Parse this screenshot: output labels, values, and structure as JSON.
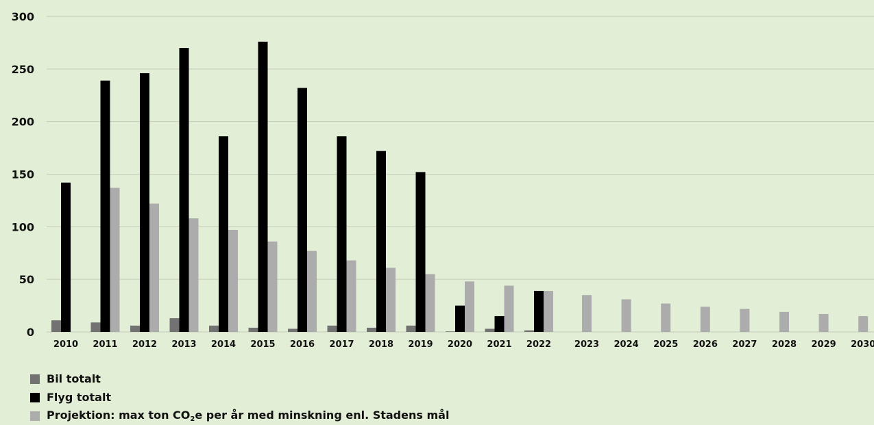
{
  "chart_data": {
    "type": "bar",
    "categories": [
      "2010",
      "2011",
      "2012",
      "2013",
      "2014",
      "2015",
      "2016",
      "2017",
      "2018",
      "2019",
      "2020",
      "2021",
      "2022",
      "2023",
      "2024",
      "2025",
      "2026",
      "2027",
      "2028",
      "2029",
      "2030"
    ],
    "series": [
      {
        "name": "Bil totalt",
        "color": "#727272",
        "values": [
          11,
          9,
          6,
          13,
          6,
          4,
          3,
          6,
          4,
          6,
          0.5,
          3,
          1.5,
          null,
          null,
          null,
          null,
          null,
          null,
          null,
          null
        ]
      },
      {
        "name": "Flyg totalt",
        "color": "#000000",
        "values": [
          142,
          239,
          246,
          270,
          186,
          276,
          232,
          186,
          172,
          152,
          25,
          15,
          39,
          null,
          null,
          null,
          null,
          null,
          null,
          null,
          null
        ]
      },
      {
        "name": "Projektion: max ton CO₂e per år med minskning enl. Stadens mål",
        "color": "#acacac",
        "values": [
          null,
          137,
          122,
          108,
          97,
          86,
          77,
          68,
          61,
          55,
          48,
          44,
          39,
          35,
          31,
          27,
          24,
          22,
          19,
          17,
          15
        ]
      }
    ],
    "y_ticks": [
      0,
      50,
      100,
      150,
      200,
      250,
      300
    ],
    "ylim": [
      0,
      300
    ],
    "grid": true,
    "legend_position": "bottom-left"
  },
  "legend": {
    "bil": "Bil totalt",
    "flyg": "Flyg totalt",
    "proj_prefix": "Projektion: max ton CO",
    "proj_sub": "2",
    "proj_suffix": "e per år med minskning enl. Stadens mål"
  },
  "colors": {
    "background": "#e3eed6",
    "grid": "#c2cab8"
  }
}
